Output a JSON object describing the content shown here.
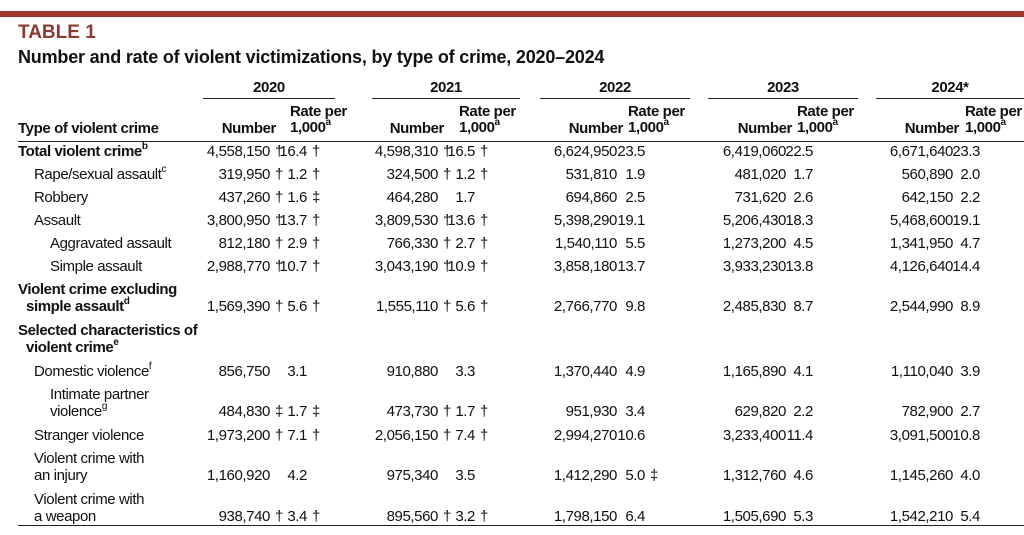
{
  "header": {
    "label": "TABLE 1",
    "title": "Number and rate of violent victimizations, by type of crime, 2020–2024"
  },
  "table": {
    "stub_header": "Type of violent crime",
    "years": [
      "2020",
      "2021",
      "2022",
      "2023",
      "2024*"
    ],
    "number_header": "Number",
    "rate_header": [
      "Rate per",
      "1,000"
    ],
    "rate_note": "a",
    "rows": [
      {
        "lines": [
          "Total violent crime"
        ],
        "note": "b",
        "bold": true,
        "level": 0,
        "cells": [
          {
            "text": "4,558,150",
            "mark": "†"
          },
          {
            "text": "16.4",
            "mark": "†"
          },
          {
            "text": "4,598,310",
            "mark": "†"
          },
          {
            "text": "16.5",
            "mark": "†"
          },
          {
            "text": "6,624,950"
          },
          {
            "text": "23.5"
          },
          {
            "text": "6,419,060"
          },
          {
            "text": "22.5"
          },
          {
            "text": "6,671,640"
          },
          {
            "text": "23.3"
          }
        ]
      },
      {
        "lines": [
          "Rape/sexual assault"
        ],
        "note": "c",
        "level": 1,
        "cells": [
          {
            "text": "319,950",
            "mark": "†"
          },
          {
            "text": "1.2",
            "mark": "†"
          },
          {
            "text": "324,500",
            "mark": "†"
          },
          {
            "text": "1.2",
            "mark": "†"
          },
          {
            "text": "531,810"
          },
          {
            "text": "1.9"
          },
          {
            "text": "481,020"
          },
          {
            "text": "1.7"
          },
          {
            "text": "560,890"
          },
          {
            "text": "2.0"
          }
        ]
      },
      {
        "lines": [
          "Robbery"
        ],
        "level": 1,
        "cells": [
          {
            "text": "437,260",
            "mark": "†"
          },
          {
            "text": "1.6",
            "mark": "‡"
          },
          {
            "text": "464,280"
          },
          {
            "text": "1.7"
          },
          {
            "text": "694,860"
          },
          {
            "text": "2.5"
          },
          {
            "text": "731,620"
          },
          {
            "text": "2.6"
          },
          {
            "text": "642,150"
          },
          {
            "text": "2.2"
          }
        ]
      },
      {
        "lines": [
          "Assault"
        ],
        "level": 1,
        "cells": [
          {
            "text": "3,800,950",
            "mark": "†"
          },
          {
            "text": "13.7",
            "mark": "†"
          },
          {
            "text": "3,809,530",
            "mark": "†"
          },
          {
            "text": "13.6",
            "mark": "†"
          },
          {
            "text": "5,398,290"
          },
          {
            "text": "19.1"
          },
          {
            "text": "5,206,430"
          },
          {
            "text": "18.3"
          },
          {
            "text": "5,468,600"
          },
          {
            "text": "19.1"
          }
        ]
      },
      {
        "lines": [
          "Aggravated assault"
        ],
        "level": 2,
        "cells": [
          {
            "text": "812,180",
            "mark": "†"
          },
          {
            "text": "2.9",
            "mark": "†"
          },
          {
            "text": "766,330",
            "mark": "†"
          },
          {
            "text": "2.7",
            "mark": "†"
          },
          {
            "text": "1,540,110"
          },
          {
            "text": "5.5"
          },
          {
            "text": "1,273,200"
          },
          {
            "text": "4.5"
          },
          {
            "text": "1,341,950"
          },
          {
            "text": "4.7"
          }
        ]
      },
      {
        "lines": [
          "Simple assault"
        ],
        "level": 2,
        "cells": [
          {
            "text": "2,988,770",
            "mark": "†"
          },
          {
            "text": "10.7",
            "mark": "†"
          },
          {
            "text": "3,043,190",
            "mark": "†"
          },
          {
            "text": "10.9",
            "mark": "†"
          },
          {
            "text": "3,858,180"
          },
          {
            "text": "13.7"
          },
          {
            "text": "3,933,230"
          },
          {
            "text": "13.8"
          },
          {
            "text": "4,126,640"
          },
          {
            "text": "14.4"
          }
        ]
      },
      {
        "lines": [
          "Violent crime excluding",
          "simple assault"
        ],
        "note": "d",
        "bold": true,
        "level": 0,
        "cells": [
          {
            "text": "1,569,390",
            "mark": "†"
          },
          {
            "text": "5.6",
            "mark": "†"
          },
          {
            "text": "1,555,110",
            "mark": "†"
          },
          {
            "text": "5.6",
            "mark": "†"
          },
          {
            "text": "2,766,770"
          },
          {
            "text": "9.8"
          },
          {
            "text": "2,485,830"
          },
          {
            "text": "8.7"
          },
          {
            "text": "2,544,990"
          },
          {
            "text": "8.9"
          }
        ]
      },
      {
        "lines": [
          "Selected characteristics of",
          "violent crime"
        ],
        "note": "e",
        "bold": true,
        "level": 0,
        "cells": []
      },
      {
        "lines": [
          "Domestic violence"
        ],
        "note": "f",
        "level": 1,
        "cells": [
          {
            "text": "856,750"
          },
          {
            "text": "3.1"
          },
          {
            "text": "910,880"
          },
          {
            "text": "3.3"
          },
          {
            "text": "1,370,440"
          },
          {
            "text": "4.9"
          },
          {
            "text": "1,165,890"
          },
          {
            "text": "4.1"
          },
          {
            "text": "1,110,040"
          },
          {
            "text": "3.9"
          }
        ]
      },
      {
        "lines": [
          "Intimate partner",
          "violence"
        ],
        "note": "g",
        "level": 2,
        "cells": [
          {
            "text": "484,830",
            "mark": "‡"
          },
          {
            "text": "1.7",
            "mark": "‡"
          },
          {
            "text": "473,730",
            "mark": "†"
          },
          {
            "text": "1.7",
            "mark": "†"
          },
          {
            "text": "951,930"
          },
          {
            "text": "3.4"
          },
          {
            "text": "629,820"
          },
          {
            "text": "2.2"
          },
          {
            "text": "782,900"
          },
          {
            "text": "2.7"
          }
        ]
      },
      {
        "lines": [
          "Stranger violence"
        ],
        "level": 1,
        "cells": [
          {
            "text": "1,973,200",
            "mark": "†"
          },
          {
            "text": "7.1",
            "mark": "†"
          },
          {
            "text": "2,056,150",
            "mark": "†"
          },
          {
            "text": "7.4",
            "mark": "†"
          },
          {
            "text": "2,994,270"
          },
          {
            "text": "10.6"
          },
          {
            "text": "3,233,400"
          },
          {
            "text": "11.4"
          },
          {
            "text": "3,091,500"
          },
          {
            "text": "10.8"
          }
        ]
      },
      {
        "lines": [
          "Violent crime with",
          "an injury"
        ],
        "level": 1,
        "cells": [
          {
            "text": "1,160,920"
          },
          {
            "text": "4.2"
          },
          {
            "text": "975,340"
          },
          {
            "text": "3.5"
          },
          {
            "text": "1,412,290"
          },
          {
            "text": "5.0",
            "mark": "‡"
          },
          {
            "text": "1,312,760"
          },
          {
            "text": "4.6"
          },
          {
            "text": "1,145,260"
          },
          {
            "text": "4.0"
          }
        ]
      },
      {
        "lines": [
          "Violent crime with",
          "a weapon"
        ],
        "level": 1,
        "cells": [
          {
            "text": "938,740",
            "mark": "†"
          },
          {
            "text": "3.4",
            "mark": "†"
          },
          {
            "text": "895,560",
            "mark": "†"
          },
          {
            "text": "3.2",
            "mark": "†"
          },
          {
            "text": "1,798,150"
          },
          {
            "text": "6.4"
          },
          {
            "text": "1,505,690"
          },
          {
            "text": "5.3"
          },
          {
            "text": "1,542,210"
          },
          {
            "text": "5.4"
          }
        ]
      }
    ]
  }
}
